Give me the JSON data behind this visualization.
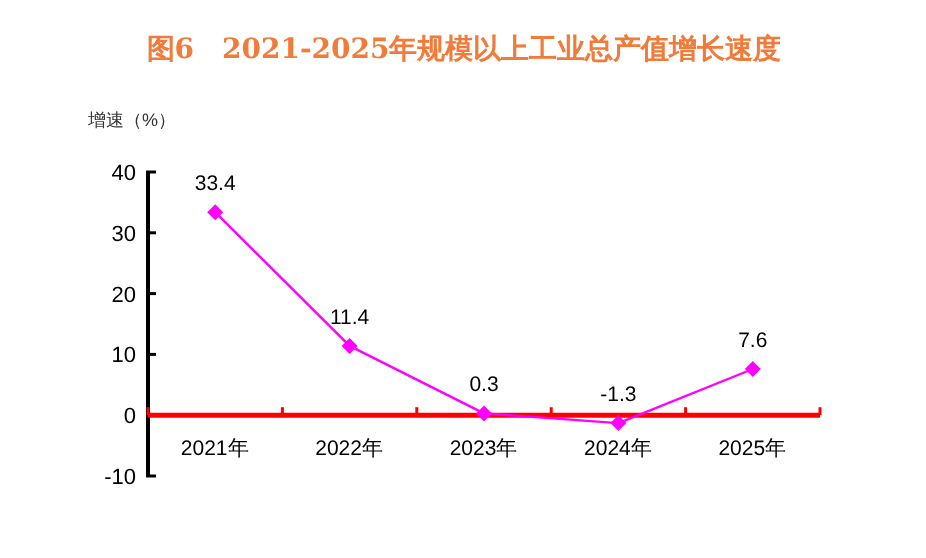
{
  "chart_data": {
    "type": "line",
    "title": "图6　2021-2025年规模以上工业总产值增长速度",
    "ylabel": "增速（%）",
    "categories": [
      "2021年",
      "2022年",
      "2023年",
      "2024年",
      "2025年"
    ],
    "series": [
      {
        "color": "#ff00ff",
        "values": [
          33.4,
          11.4,
          0.3,
          -1.3,
          7.6
        ]
      }
    ],
    "ylim": [
      -10,
      40
    ],
    "yticks": [
      -10,
      0,
      10,
      20,
      30,
      40
    ],
    "marker": "diamond",
    "data_labels": true,
    "grid": false
  }
}
